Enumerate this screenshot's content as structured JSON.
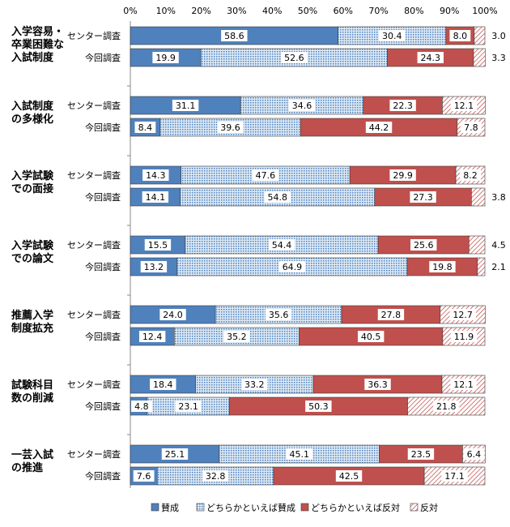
{
  "chart_data": {
    "type": "bar",
    "stacked": "percent",
    "orientation": "horizontal",
    "title": "",
    "xlim": [
      0,
      100
    ],
    "x_ticks": [
      "0%",
      "10%",
      "20%",
      "30%",
      "40%",
      "50%",
      "60%",
      "70%",
      "80%",
      "90%",
      "100%"
    ],
    "series": [
      {
        "name": "賛成",
        "color": "#4f81bd",
        "pattern": "solid"
      },
      {
        "name": "どちらかといえば賛成",
        "color": "#4f81bd",
        "pattern": "dotted"
      },
      {
        "name": "どちらかといえば反対",
        "color": "#c0504d",
        "pattern": "solid"
      },
      {
        "name": "反対",
        "color": "#c0504d",
        "pattern": "hatched"
      }
    ],
    "groups": [
      {
        "category": "入学容易・\n卒業困難な\n入試制度",
        "rows": [
          {
            "label": "センター調査",
            "values": [
              58.6,
              30.4,
              8.0,
              3.0
            ]
          },
          {
            "label": "今回調査",
            "values": [
              19.9,
              52.6,
              24.3,
              3.3
            ]
          }
        ]
      },
      {
        "category": "入試制度\nの多様化",
        "rows": [
          {
            "label": "センター調査",
            "values": [
              31.1,
              34.6,
              22.3,
              12.1
            ]
          },
          {
            "label": "今回調査",
            "values": [
              8.4,
              39.6,
              44.2,
              7.8
            ]
          }
        ]
      },
      {
        "category": "入学試験\nでの面接",
        "rows": [
          {
            "label": "センター調査",
            "values": [
              14.3,
              47.6,
              29.9,
              8.2
            ]
          },
          {
            "label": "今回調査",
            "values": [
              14.1,
              54.8,
              27.3,
              3.8
            ]
          }
        ]
      },
      {
        "category": "入学試験\nでの論文",
        "rows": [
          {
            "label": "センター調査",
            "values": [
              15.5,
              54.4,
              25.6,
              4.5
            ]
          },
          {
            "label": "今回調査",
            "values": [
              13.2,
              64.9,
              19.8,
              2.1
            ]
          }
        ]
      },
      {
        "category": "推薦入学\n制度拡充",
        "rows": [
          {
            "label": "センター調査",
            "values": [
              24.0,
              35.6,
              27.8,
              12.7
            ]
          },
          {
            "label": "今回調査",
            "values": [
              12.4,
              35.2,
              40.5,
              11.9
            ]
          }
        ]
      },
      {
        "category": "試験科目\n数の削減",
        "rows": [
          {
            "label": "センター調査",
            "values": [
              18.4,
              33.2,
              36.3,
              12.1
            ]
          },
          {
            "label": "今回調査",
            "values": [
              4.8,
              23.1,
              50.3,
              21.8
            ]
          }
        ]
      },
      {
        "category": "一芸入試\nの推進",
        "rows": [
          {
            "label": "センター調査",
            "values": [
              25.1,
              45.1,
              23.5,
              6.4
            ]
          },
          {
            "label": "今回調査",
            "values": [
              7.6,
              32.8,
              42.5,
              17.1
            ]
          }
        ]
      }
    ],
    "legend": {
      "position": "bottom"
    },
    "grid": false
  }
}
